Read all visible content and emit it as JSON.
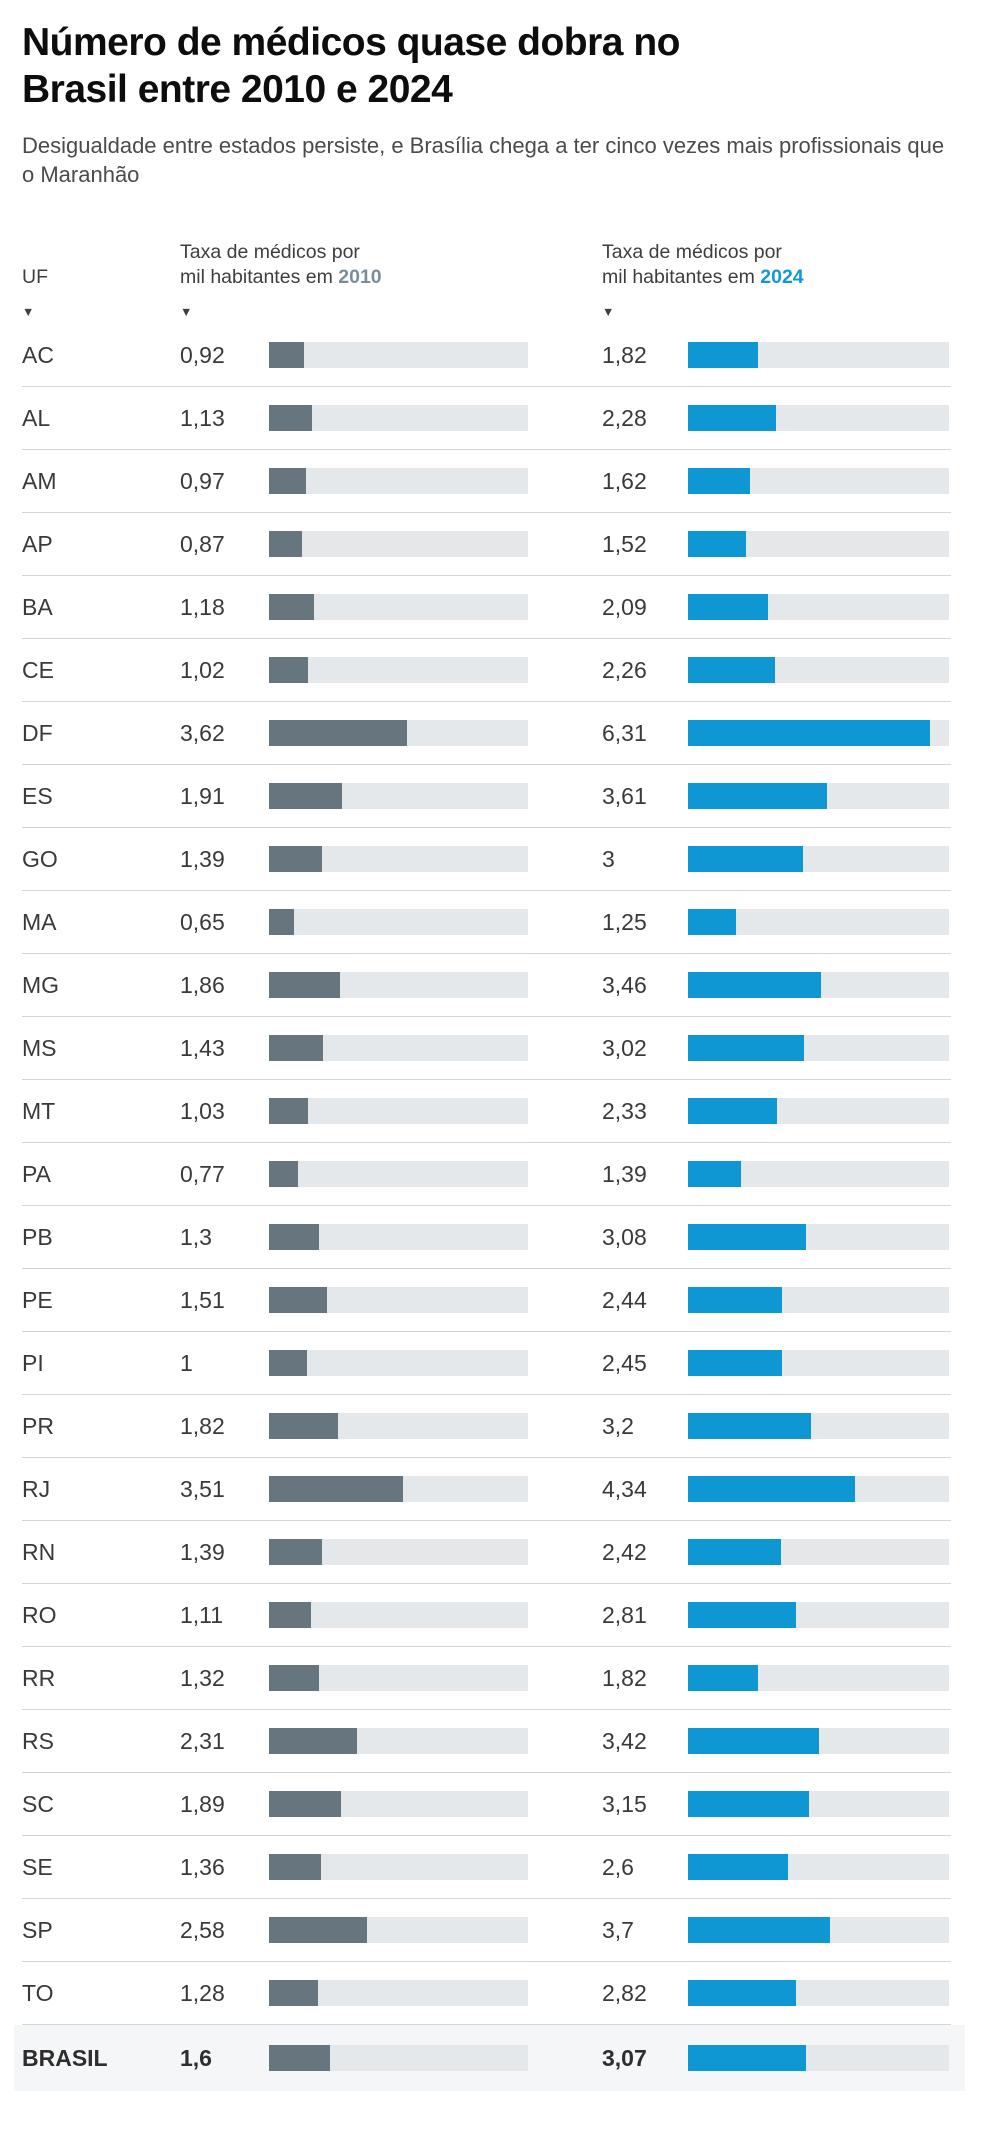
{
  "header": {
    "title_lines": [
      "Número de médicos quase dobra no",
      "Brasil entre 2010 e 2024"
    ],
    "subtitle": "Desigualdade entre estados persiste, e Brasília chega a ter cinco vezes mais profissionais que o Maranhão"
  },
  "columns": {
    "uf": {
      "label": "UF"
    },
    "rate_2010": {
      "line1": "Taxa de médicos por",
      "line2": "mil habitantes em",
      "year": "2010"
    },
    "rate_2024": {
      "line1": "Taxa de médicos por",
      "line2": "mil habitantes em",
      "year": "2024"
    }
  },
  "icons": {
    "sort": "▼"
  },
  "colors": {
    "bar_2010": "#67757f",
    "bar_2024": "#0f97d4",
    "track": "#e4e8eb",
    "year_2010_text": "#7c8d9a",
    "year_2024_text": "#1398d6",
    "total_row_bg": "#f4f6f7",
    "divider": "#d2d7da"
  },
  "chart_data": {
    "type": "bar",
    "orientation": "horizontal",
    "title": "Número de médicos quase dobra no Brasil entre 2010 e 2024",
    "subtitle": "Desigualdade entre estados persiste, e Brasília chega a ter cinco vezes mais profissionais que o Maranhão",
    "unit": "taxa de médicos por mil habitantes",
    "scale_max": 6.8,
    "grid": false,
    "series": [
      {
        "name": "2010",
        "color": "#67757f"
      },
      {
        "name": "2024",
        "color": "#0f97d4"
      }
    ],
    "rows": [
      {
        "uf": "AC",
        "v2010": 0.92,
        "label_2010": "0,92",
        "v2024": 1.82,
        "label_2024": "1,82"
      },
      {
        "uf": "AL",
        "v2010": 1.13,
        "label_2010": "1,13",
        "v2024": 2.28,
        "label_2024": "2,28"
      },
      {
        "uf": "AM",
        "v2010": 0.97,
        "label_2010": "0,97",
        "v2024": 1.62,
        "label_2024": "1,62"
      },
      {
        "uf": "AP",
        "v2010": 0.87,
        "label_2010": "0,87",
        "v2024": 1.52,
        "label_2024": "1,52"
      },
      {
        "uf": "BA",
        "v2010": 1.18,
        "label_2010": "1,18",
        "v2024": 2.09,
        "label_2024": "2,09"
      },
      {
        "uf": "CE",
        "v2010": 1.02,
        "label_2010": "1,02",
        "v2024": 2.26,
        "label_2024": "2,26"
      },
      {
        "uf": "DF",
        "v2010": 3.62,
        "label_2010": "3,62",
        "v2024": 6.31,
        "label_2024": "6,31"
      },
      {
        "uf": "ES",
        "v2010": 1.91,
        "label_2010": "1,91",
        "v2024": 3.61,
        "label_2024": "3,61"
      },
      {
        "uf": "GO",
        "v2010": 1.39,
        "label_2010": "1,39",
        "v2024": 3,
        "label_2024": "3"
      },
      {
        "uf": "MA",
        "v2010": 0.65,
        "label_2010": "0,65",
        "v2024": 1.25,
        "label_2024": "1,25"
      },
      {
        "uf": "MG",
        "v2010": 1.86,
        "label_2010": "1,86",
        "v2024": 3.46,
        "label_2024": "3,46"
      },
      {
        "uf": "MS",
        "v2010": 1.43,
        "label_2010": "1,43",
        "v2024": 3.02,
        "label_2024": "3,02"
      },
      {
        "uf": "MT",
        "v2010": 1.03,
        "label_2010": "1,03",
        "v2024": 2.33,
        "label_2024": "2,33"
      },
      {
        "uf": "PA",
        "v2010": 0.77,
        "label_2010": "0,77",
        "v2024": 1.39,
        "label_2024": "1,39"
      },
      {
        "uf": "PB",
        "v2010": 1.3,
        "label_2010": "1,3",
        "v2024": 3.08,
        "label_2024": "3,08"
      },
      {
        "uf": "PE",
        "v2010": 1.51,
        "label_2010": "1,51",
        "v2024": 2.44,
        "label_2024": "2,44"
      },
      {
        "uf": "PI",
        "v2010": 1,
        "label_2010": "1",
        "v2024": 2.45,
        "label_2024": "2,45"
      },
      {
        "uf": "PR",
        "v2010": 1.82,
        "label_2010": "1,82",
        "v2024": 3.2,
        "label_2024": "3,2"
      },
      {
        "uf": "RJ",
        "v2010": 3.51,
        "label_2010": "3,51",
        "v2024": 4.34,
        "label_2024": "4,34"
      },
      {
        "uf": "RN",
        "v2010": 1.39,
        "label_2010": "1,39",
        "v2024": 2.42,
        "label_2024": "2,42"
      },
      {
        "uf": "RO",
        "v2010": 1.11,
        "label_2010": "1,11",
        "v2024": 2.81,
        "label_2024": "2,81"
      },
      {
        "uf": "RR",
        "v2010": 1.32,
        "label_2010": "1,32",
        "v2024": 1.82,
        "label_2024": "1,82"
      },
      {
        "uf": "RS",
        "v2010": 2.31,
        "label_2010": "2,31",
        "v2024": 3.42,
        "label_2024": "3,42"
      },
      {
        "uf": "SC",
        "v2010": 1.89,
        "label_2010": "1,89",
        "v2024": 3.15,
        "label_2024": "3,15"
      },
      {
        "uf": "SE",
        "v2010": 1.36,
        "label_2010": "1,36",
        "v2024": 2.6,
        "label_2024": "2,6"
      },
      {
        "uf": "SP",
        "v2010": 2.58,
        "label_2010": "2,58",
        "v2024": 3.7,
        "label_2024": "3,7"
      },
      {
        "uf": "TO",
        "v2010": 1.28,
        "label_2010": "1,28",
        "v2024": 2.82,
        "label_2024": "2,82"
      },
      {
        "uf": "BRASIL",
        "v2010": 1.6,
        "label_2010": "1,6",
        "v2024": 3.07,
        "label_2024": "3,07",
        "total": true
      }
    ]
  }
}
